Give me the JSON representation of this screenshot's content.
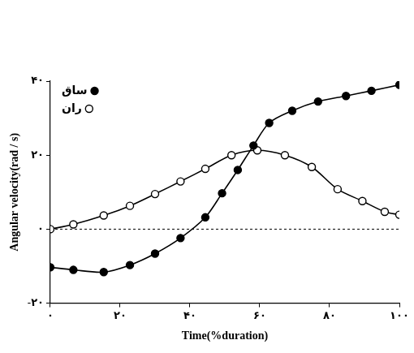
{
  "chart_data": {
    "type": "line",
    "x_label": "Time(%duration)",
    "y_label": "Angular velocity(rad / s)",
    "xlim": [
      0,
      100
    ],
    "ylim": [
      -20,
      40
    ],
    "xticks": [
      {
        "value": 0,
        "label": "۰"
      },
      {
        "value": 20,
        "label": "۲۰"
      },
      {
        "value": 40,
        "label": "۴۰"
      },
      {
        "value": 60,
        "label": "۶۰"
      },
      {
        "value": 80,
        "label": "۸۰"
      },
      {
        "value": 100,
        "label": "۱۰۰"
      }
    ],
    "yticks": [
      {
        "value": -20,
        "label": "-۲۰"
      },
      {
        "value": 0,
        "label": "۰"
      },
      {
        "value": 20,
        "label": "۲۰"
      },
      {
        "value": 40,
        "label": "۴۰"
      }
    ],
    "grid": false,
    "legend": "upper left",
    "series": [
      {
        "name": "ساق",
        "color": "#000000",
        "marker": "filled_circle",
        "line_style": "solid",
        "x": [
          0,
          6.6,
          15.3,
          22.8,
          30,
          37.3,
          44.4,
          49.2,
          53.7,
          58.2,
          62.7,
          69.3,
          76.7,
          84.7,
          92,
          100
        ],
        "values": [
          -10.3,
          -11,
          -11.6,
          -9.7,
          -6.6,
          -2.4,
          3.2,
          9.7,
          16,
          22.6,
          28.7,
          32,
          34.5,
          36,
          37.4,
          39
        ]
      },
      {
        "name": "ران",
        "color": "#000000",
        "marker": "open_circle",
        "line_style": "solid",
        "x": [
          0,
          6.6,
          15.3,
          22.8,
          30,
          37.3,
          44.4,
          51.9,
          59.3,
          67.2,
          74.9,
          82.3,
          89.4,
          95.8,
          100
        ],
        "values": [
          0,
          1.3,
          3.7,
          6.3,
          9.5,
          12.9,
          16.3,
          20,
          21.3,
          20,
          16.8,
          10.8,
          7.6,
          4.7,
          3.9
        ]
      }
    ]
  }
}
